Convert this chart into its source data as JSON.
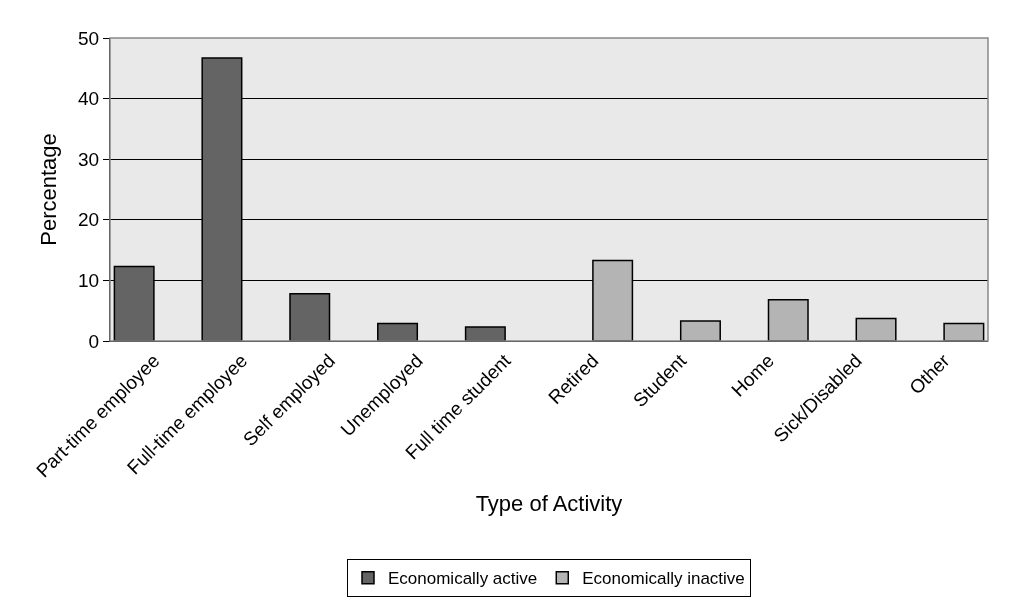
{
  "chart_data": {
    "type": "bar",
    "xlabel": "Type of Activity",
    "ylabel": "Percentage",
    "categories": [
      "Part-time employee",
      "Full-time employee",
      "Self employed",
      "Unemployed",
      "Full time student",
      "Retired",
      "Student",
      "Home",
      "Sick/Disabled",
      "Other"
    ],
    "series": [
      {
        "name": "Economically active",
        "color": "#646464",
        "values": [
          12.3,
          46.7,
          7.8,
          2.9,
          2.3,
          null,
          null,
          null,
          null,
          null
        ]
      },
      {
        "name": "Economically inactive",
        "color": "#b4b4b4",
        "values": [
          null,
          null,
          null,
          null,
          null,
          13.3,
          3.3,
          6.8,
          3.7,
          2.9
        ]
      }
    ],
    "ylim": [
      0,
      50
    ],
    "yticks": [
      0,
      10,
      20,
      30,
      40,
      50
    ],
    "grid": "y",
    "legend": "bottom"
  }
}
